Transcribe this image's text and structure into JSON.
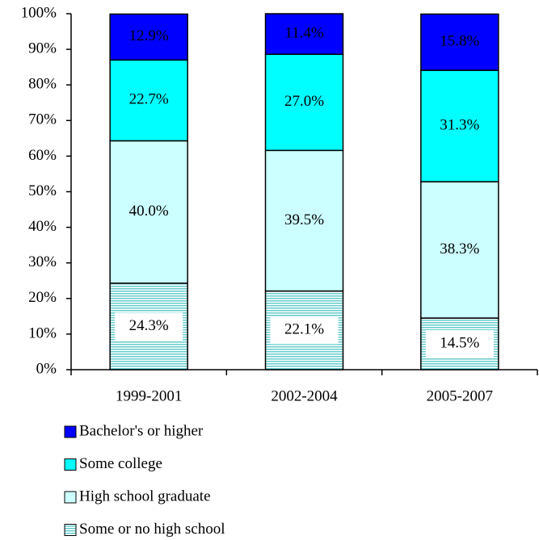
{
  "chart_data": {
    "type": "stacked-bar",
    "categories": [
      "1999-2001",
      "2002-2004",
      "2005-2007"
    ],
    "series": [
      {
        "name": "Bachelor's or higher",
        "color": "#0000ff",
        "values": [
          12.9,
          11.4,
          15.8
        ],
        "value_labels": [
          "12.9%",
          "11.4%",
          "15.8%"
        ]
      },
      {
        "name": "Some college",
        "color": "#00ffff",
        "values": [
          22.7,
          27.0,
          31.3
        ],
        "value_labels": [
          "22.7%",
          "27.0%",
          "31.3%"
        ]
      },
      {
        "name": "High school graduate",
        "color": "#ccffff",
        "values": [
          40.0,
          39.5,
          38.3
        ],
        "value_labels": [
          "40.0%",
          "39.5%",
          "38.3%"
        ]
      },
      {
        "name": "Some or no high school",
        "color": "#99dddd",
        "values": [
          24.3,
          22.1,
          14.5
        ],
        "value_labels": [
          "24.3%",
          "22.1%",
          "14.5%"
        ]
      }
    ],
    "ylim": [
      0,
      100
    ],
    "yticks": [
      {
        "value": 0,
        "label": "0%"
      },
      {
        "value": 10,
        "label": "10%"
      },
      {
        "value": 20,
        "label": "20%"
      },
      {
        "value": 30,
        "label": "30%"
      },
      {
        "value": 40,
        "label": "40%"
      },
      {
        "value": 50,
        "label": "50%"
      },
      {
        "value": 60,
        "label": "60%"
      },
      {
        "value": 70,
        "label": "70%"
      },
      {
        "value": 80,
        "label": "80%"
      },
      {
        "value": 90,
        "label": "90%"
      },
      {
        "value": 100,
        "label": "100%"
      }
    ]
  }
}
